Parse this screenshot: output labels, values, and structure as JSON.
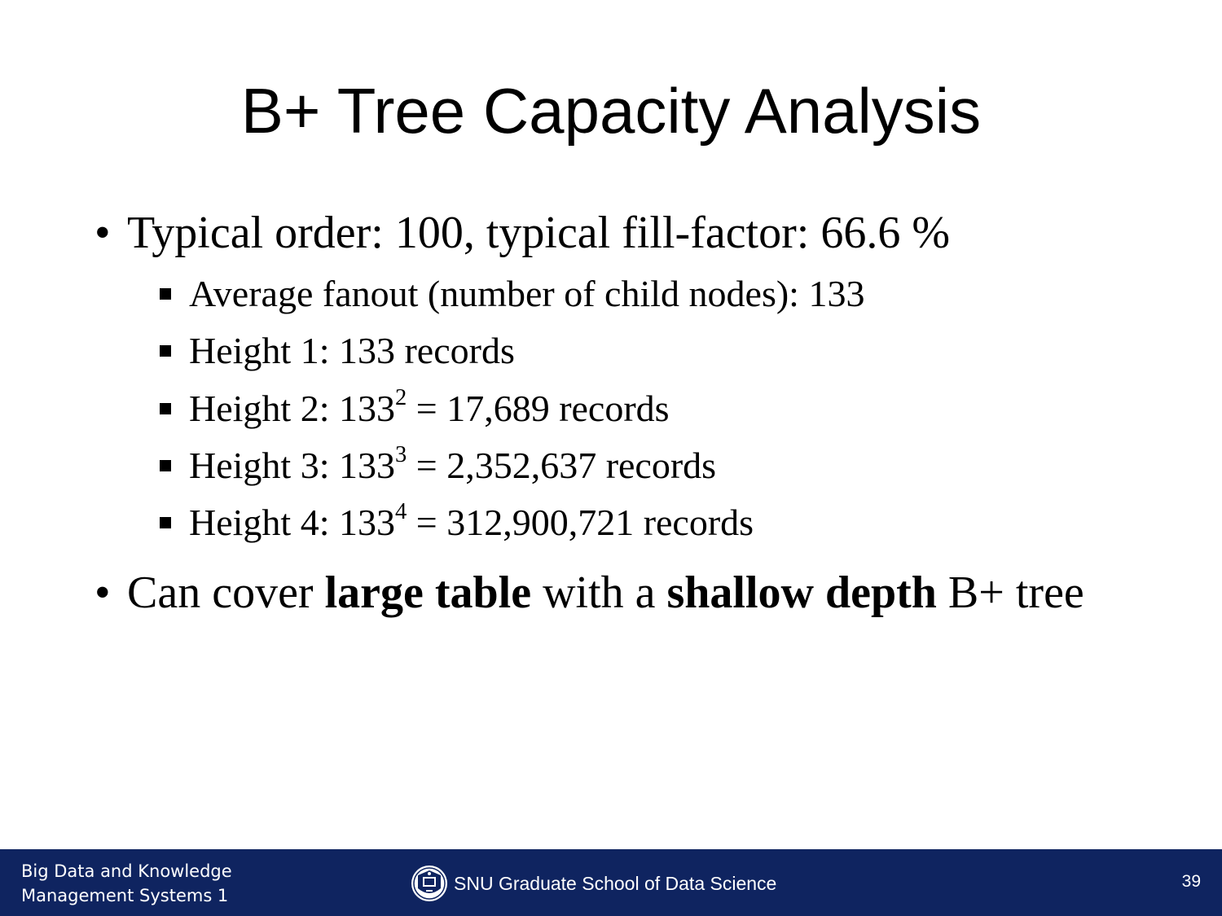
{
  "slide": {
    "title": "B+ Tree Capacity Analysis",
    "bullets": [
      {
        "marker": "•",
        "text": "Typical order: 100, typical fill-factor: 66.6 %"
      },
      {
        "marker": "•",
        "pre": "Can cover ",
        "bold1": "large table",
        "mid": " with a ",
        "bold2": "shallow depth",
        "post": " B+ tree"
      }
    ],
    "subbullets": [
      {
        "text": "Average fanout (number of child nodes): 133"
      },
      {
        "text": "Height 1: 133 records"
      },
      {
        "base": "Height 2: 133",
        "exp": "2",
        "rest": " = 17,689 records"
      },
      {
        "base": "Height 3: 133",
        "exp": "3",
        "rest": " = 2,352,637 records"
      },
      {
        "base": "Height 4: 133",
        "exp": "4",
        "rest": " = 312,900,721 records"
      }
    ]
  },
  "footer": {
    "course_line1": "Big Data and Knowledge",
    "course_line2": "Management Systems 1",
    "school": "SNU Graduate School of Data Science",
    "logo": "snu-seal-icon",
    "page_number": "39",
    "background_color": "#0f2460"
  }
}
